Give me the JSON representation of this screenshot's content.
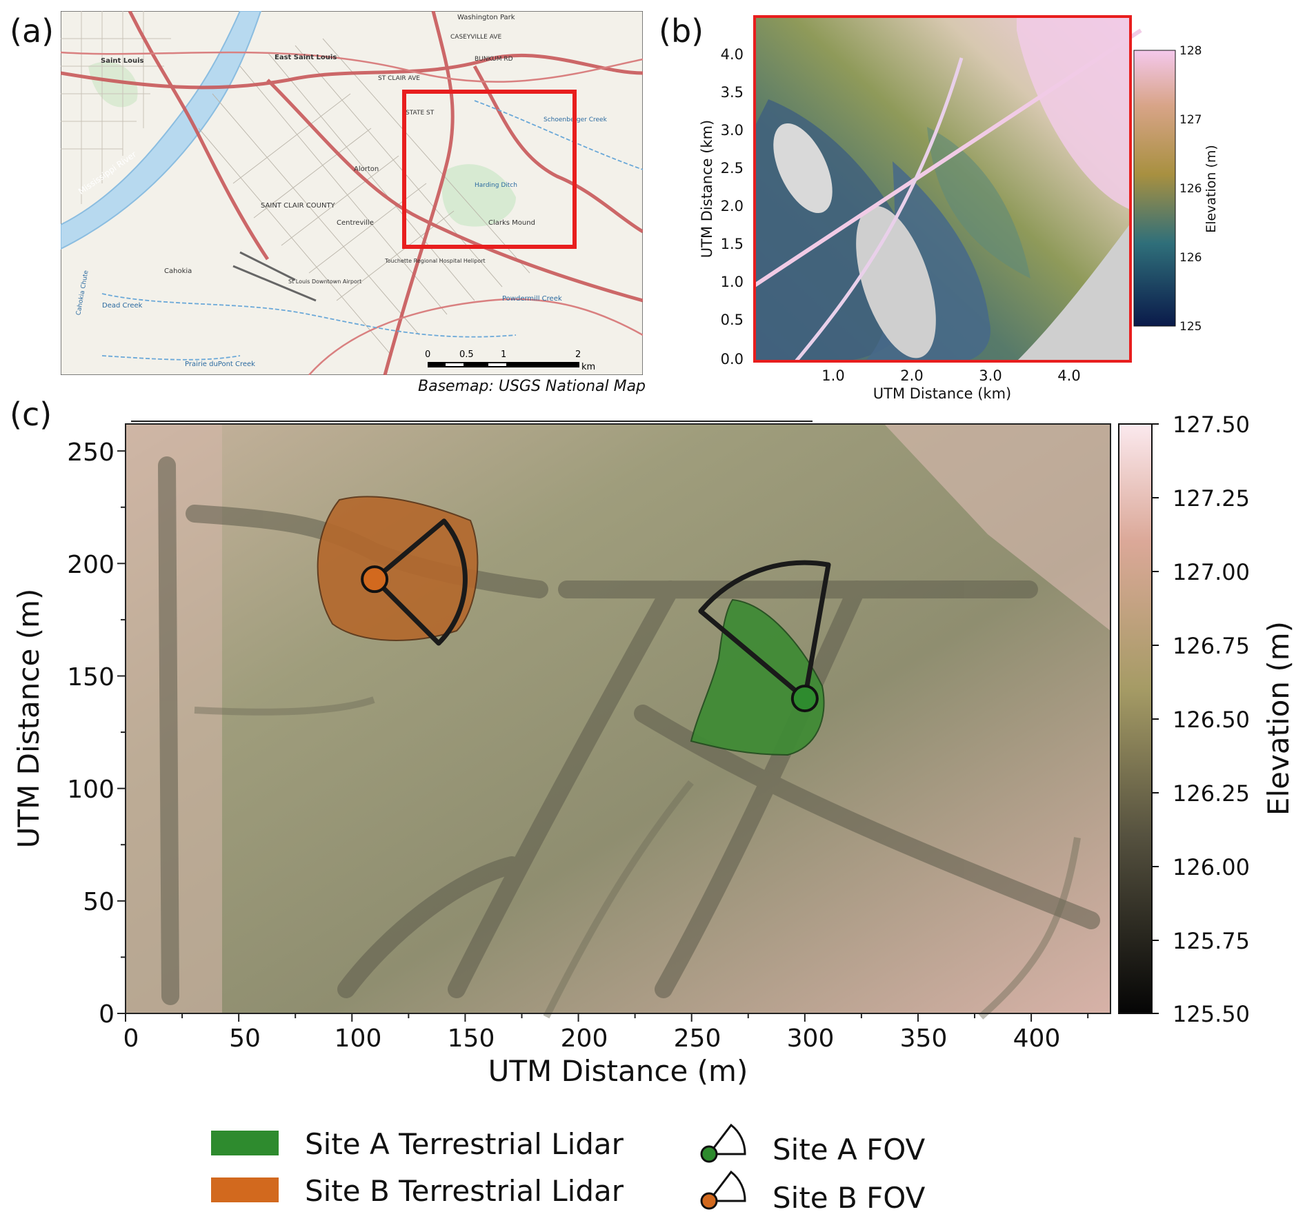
{
  "panels": {
    "a": {
      "label": "(a)",
      "attribution": "Basemap: USGS National Map",
      "scale_ticks": [
        "0",
        "0.5",
        "1",
        "2"
      ],
      "scale_unit": "km",
      "place_labels": {
        "saint_louis": "Saint Louis",
        "east_saint_louis": "East Saint Louis",
        "washington_park": "Washington Park",
        "caseyville": "CASEYVILLE AVE",
        "bunkum": "BUNKUM RD",
        "st_clair": "ST CLAIR AVE",
        "state_st": "STATE ST",
        "saint_clair_county": "SAINT CLAIR COUNTY",
        "alorton": "Alorton",
        "centreville": "Centreville",
        "cahokia": "Cahokia",
        "mississippi": "Mississippi River",
        "harding": "Harding Ditch",
        "clarks_mound": "Clarks Mound",
        "touchette": "Touchette Regional Hospital Heliport",
        "st_louis_downtown_airport": "St Louis Downtown Airport",
        "dead_creek": "Dead Creek",
        "prairie_creek": "Prairie duPont Creek",
        "cahokia_chute": "Cahokia Chute",
        "powdermill": "Powdermill Creek",
        "schoenberger": "Schoenberger Creek"
      }
    },
    "b": {
      "label": "(b)",
      "x_label": "UTM Distance (km)",
      "y_label": "UTM Distance (km)",
      "x_ticks": [
        "1.0",
        "2.0",
        "3.0",
        "4.0"
      ],
      "y_ticks": [
        "0.0",
        "0.5",
        "1.0",
        "1.5",
        "2.0",
        "2.5",
        "3.0",
        "3.5",
        "4.0"
      ],
      "colorbar_label": "Elevation (m)",
      "colorbar_ticks": [
        "125",
        "125",
        "126",
        "126",
        "127",
        "128"
      ]
    },
    "c": {
      "label": "(c)",
      "x_label": "UTM Distance (m)",
      "y_label": "UTM Distance (m)",
      "x_ticks": [
        "0",
        "50",
        "100",
        "150",
        "200",
        "250",
        "300",
        "350",
        "400"
      ],
      "y_ticks": [
        "0",
        "50",
        "100",
        "150",
        "200",
        "250"
      ],
      "colorbar_label": "Elevation (m)",
      "colorbar_ticks": [
        "125.50",
        "125.75",
        "126.00",
        "126.25",
        "126.50",
        "126.75",
        "127.00",
        "127.25",
        "127.50"
      ]
    }
  },
  "chart_data": {
    "type": "heatmap",
    "xlabel": "UTM Distance (m)",
    "ylabel": "UTM Distance (m)",
    "xlim": [
      0,
      435
    ],
    "ylim": [
      0,
      262
    ],
    "colorbar": {
      "label": "Elevation (m)",
      "range": [
        125.5,
        127.5
      ]
    },
    "sites": [
      {
        "name": "Site A",
        "x": 300,
        "y": 140,
        "fov_radius_m": 60,
        "fov_start_deg": 80,
        "fov_end_deg": 140,
        "color": "#2e8b2e"
      },
      {
        "name": "Site B",
        "x": 110,
        "y": 193,
        "fov_radius_m": 40,
        "fov_start_deg": -45,
        "fov_end_deg": 40,
        "color": "#d2691e"
      }
    ]
  },
  "legend": {
    "items": [
      {
        "label": "Site A Terrestrial Lidar",
        "color": "#2e8b2e"
      },
      {
        "label": "Site B Terrestrial Lidar",
        "color": "#d2691e"
      }
    ],
    "fov_items": [
      {
        "label": "Site A FOV",
        "color": "#2e8b2e"
      },
      {
        "label": "Site B FOV",
        "color": "#d2691e"
      }
    ]
  }
}
